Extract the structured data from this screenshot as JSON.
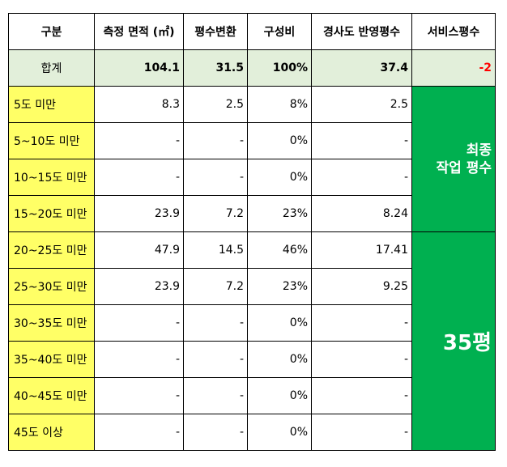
{
  "headers": [
    "구분",
    "측정 면적 (㎡)",
    "평수변환",
    "구성비",
    "경사도 반영평수",
    "서비스평수"
  ],
  "total": {
    "label": "합계",
    "area": "104.1",
    "pyeong": "31.5",
    "ratio": "100%",
    "adjusted": "37.4",
    "service": "-2"
  },
  "rows": [
    {
      "cat": "5도 미만",
      "area": "8.3",
      "pyeong": "2.5",
      "ratio": "8%",
      "adjusted": "2.5"
    },
    {
      "cat": "5~10도 미만",
      "area": "-",
      "pyeong": "-",
      "ratio": "0%",
      "adjusted": "-"
    },
    {
      "cat": "10~15도 미만",
      "area": "-",
      "pyeong": "-",
      "ratio": "0%",
      "adjusted": "-"
    },
    {
      "cat": "15~20도 미만",
      "area": "23.9",
      "pyeong": "7.2",
      "ratio": "23%",
      "adjusted": "8.24"
    },
    {
      "cat": "20~25도 미만",
      "area": "47.9",
      "pyeong": "14.5",
      "ratio": "46%",
      "adjusted": "17.41"
    },
    {
      "cat": "25~30도 미만",
      "area": "23.9",
      "pyeong": "7.2",
      "ratio": "23%",
      "adjusted": "9.25"
    },
    {
      "cat": "30~35도 미만",
      "area": "-",
      "pyeong": "-",
      "ratio": "0%",
      "adjusted": "-"
    },
    {
      "cat": "35~40도 미만",
      "area": "-",
      "pyeong": "-",
      "ratio": "0%",
      "adjusted": "-"
    },
    {
      "cat": "40~45도 미만",
      "area": "-",
      "pyeong": "-",
      "ratio": "0%",
      "adjusted": "-"
    },
    {
      "cat": "45도 이상",
      "area": "-",
      "pyeong": "-",
      "ratio": "0%",
      "adjusted": "-"
    }
  ],
  "final_label_line1": "최종",
  "final_label_line2": "작업 평수",
  "final_value": "35평",
  "colors": {
    "category_bg": "#ffff66",
    "total_bg": "#e2efda",
    "final_bg": "#00b050",
    "negative": "#ff0000"
  }
}
